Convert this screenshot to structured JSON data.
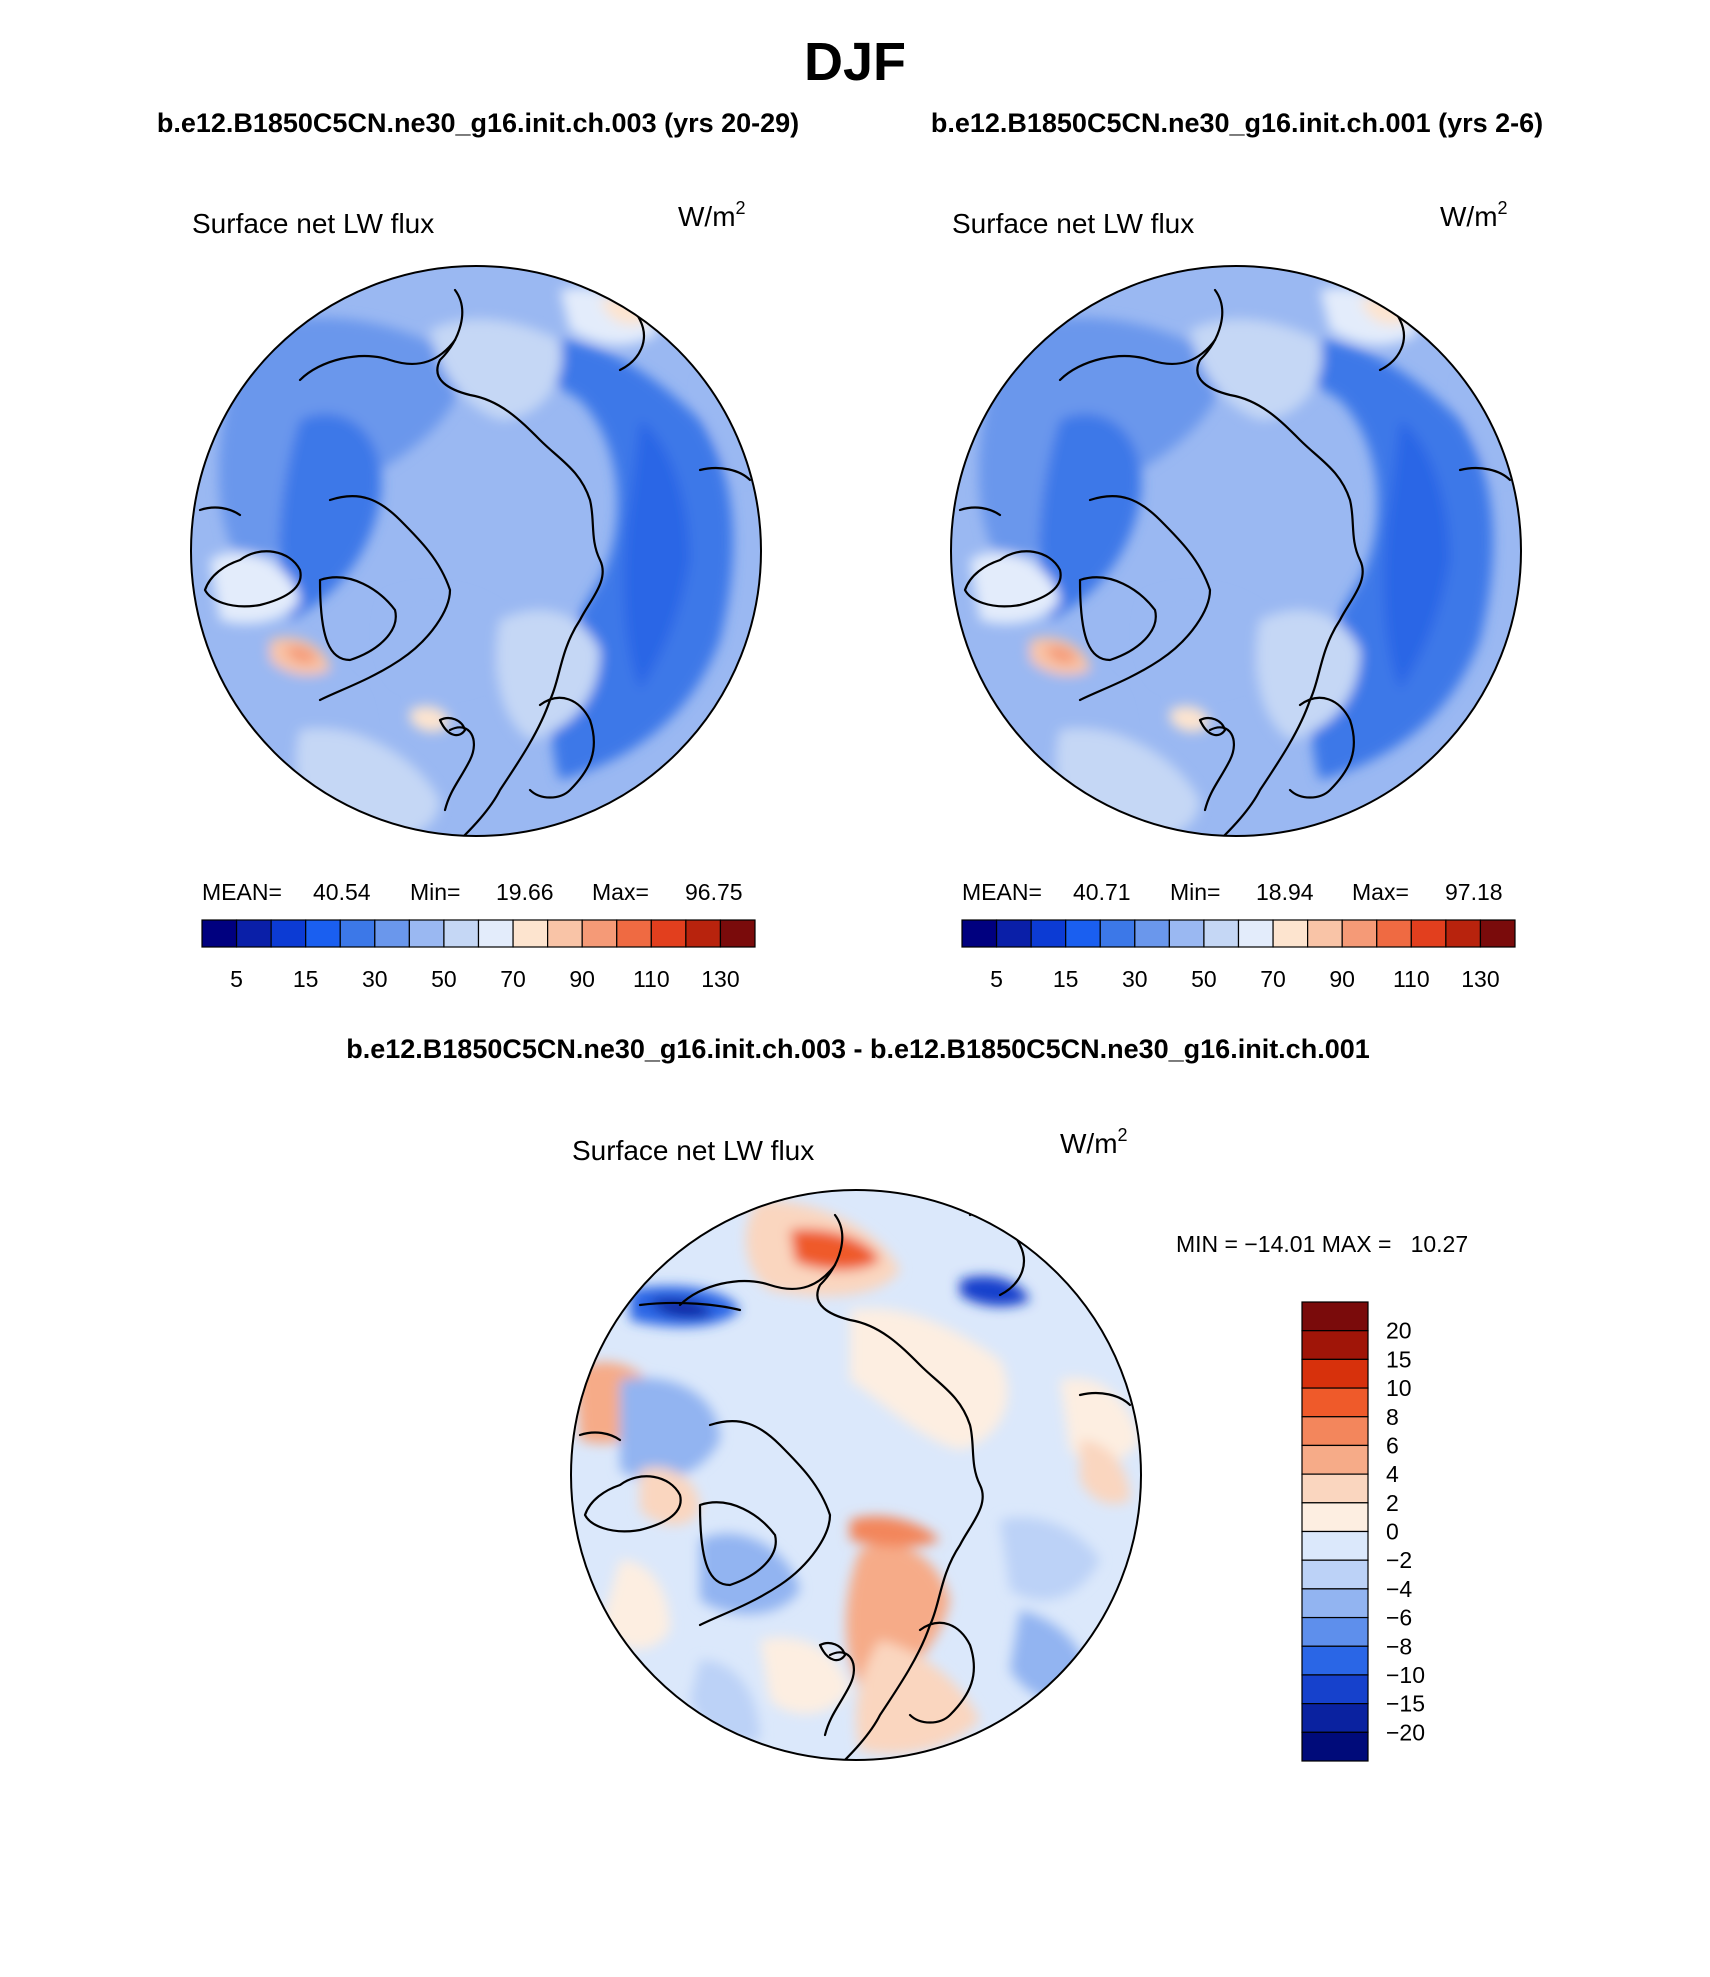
{
  "figure": {
    "season": "DJF",
    "case_a_title": "b.e12.B1850C5CN.ne30_g16.init.ch.003 (yrs 20-29)",
    "case_b_title": "b.e12.B1850C5CN.ne30_g16.init.ch.001 (yrs 2-6)",
    "diff_title": "b.e12.B1850C5CN.ne30_g16.init.ch.003 - b.e12.B1850C5CN.ne30_g16.init.ch.001"
  },
  "panels": [
    {
      "variable": "Surface net LW flux",
      "units": "W/m",
      "units_sup": "2",
      "stats": {
        "mean_label": "MEAN=",
        "mean": "40.54",
        "min_label": "Min=",
        "min": "19.66",
        "max_label": "Max=",
        "max": "96.75"
      }
    },
    {
      "variable": "Surface net LW flux",
      "units": "W/m",
      "units_sup": "2",
      "stats": {
        "mean_label": "MEAN=",
        "mean": "40.71",
        "min_label": "Min=",
        "min": "18.94",
        "max_label": "Max=",
        "max": "97.18"
      }
    },
    {
      "variable": "Surface net LW flux",
      "units": "W/m",
      "units_sup": "2",
      "stats": {
        "minmax": "MIN = −14.01 MAX =   10.27"
      }
    }
  ],
  "chart_data": [
    {
      "type": "heatmap",
      "title": "Surface net LW flux",
      "projection": "north polar stereographic",
      "units": "W/m^2",
      "stats": {
        "mean": 40.54,
        "min": 19.66,
        "max": 96.75
      },
      "colorbar_levels": [
        5,
        10,
        15,
        20,
        30,
        40,
        50,
        60,
        70,
        80,
        90,
        100,
        110,
        120,
        130
      ],
      "colorbar_tick_labels": [
        "5",
        "15",
        "30",
        "50",
        "70",
        "90",
        "110",
        "130"
      ]
    },
    {
      "type": "heatmap",
      "title": "Surface net LW flux",
      "projection": "north polar stereographic",
      "units": "W/m^2",
      "stats": {
        "mean": 40.71,
        "min": 18.94,
        "max": 97.18
      },
      "colorbar_levels": [
        5,
        10,
        15,
        20,
        30,
        40,
        50,
        60,
        70,
        80,
        90,
        100,
        110,
        120,
        130
      ],
      "colorbar_tick_labels": [
        "5",
        "15",
        "30",
        "50",
        "70",
        "90",
        "110",
        "130"
      ]
    },
    {
      "type": "heatmap",
      "title": "Surface net LW flux",
      "projection": "north polar stereographic",
      "units": "W/m^2",
      "stats": {
        "min": -14.01,
        "max": 10.27
      },
      "colorbar_levels": [
        20,
        15,
        10,
        8,
        6,
        4,
        2,
        0,
        -2,
        -4,
        -6,
        -8,
        -10,
        -15,
        -20
      ],
      "colorbar_tick_labels": [
        "20",
        "15",
        "10",
        "8",
        "6",
        "4",
        "2",
        "0",
        "−2",
        "−4",
        "−6",
        "−8",
        "−10",
        "−15",
        "−20"
      ]
    }
  ],
  "colors": {
    "abs_scale": [
      "#00007f",
      "#0a1fa8",
      "#0c3bd4",
      "#1a5ff0",
      "#3c78e8",
      "#6a97ec",
      "#9ab8f2",
      "#c5d7f5",
      "#e3ecfb",
      "#fde4cf",
      "#f9c4a7",
      "#f59a77",
      "#ef6a42",
      "#e23f1e",
      "#b8230d",
      "#7a0b0b"
    ],
    "diff_scale": [
      "#7a0b0b",
      "#a01508",
      "#d7310c",
      "#ef5a2a",
      "#f3865c",
      "#f6ab88",
      "#fad6bf",
      "#fdeee1",
      "#dbe8fb",
      "#bcd2f7",
      "#92b4f1",
      "#5e8fec",
      "#2a66e6",
      "#1641cc",
      "#0a22a0",
      "#000b7a"
    ],
    "land_fill_a": "#c9dbf6"
  }
}
